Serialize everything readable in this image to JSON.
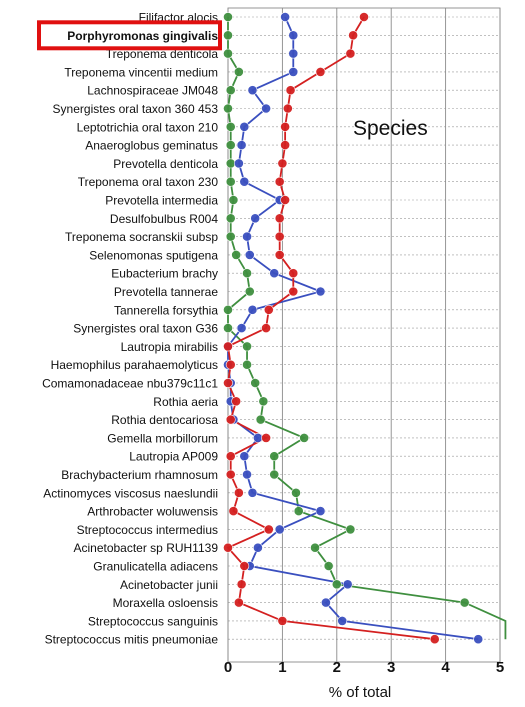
{
  "chart_data": {
    "type": "line",
    "orientation": "horizontal",
    "title": "",
    "xlabel": "% of total",
    "ylabel": "",
    "xlim": [
      0,
      5
    ],
    "x_ticks": [
      "0",
      "1",
      "2",
      "3",
      "4",
      "5"
    ],
    "grid": true,
    "annotation": "Species",
    "highlighted_category": "Porphyromonas gingivalis",
    "highlight_color": "#e01010",
    "categories": [
      "Filifactor alocis",
      "Porphyromonas gingivalis",
      "Treponema denticola",
      "Treponema vincentii medium",
      "Lachnospiraceae JM048",
      "Synergistes oral taxon 360 453",
      "Leptotrichia oral taxon 210",
      "Anaeroglobus geminatus",
      "Prevotella denticola",
      "Treponema oral taxon 230",
      "Prevotella intermedia",
      "Desulfobulbus R004",
      "Treponema socranskii subsp",
      "Selenomonas sputigena",
      "Eubacterium brachy",
      "Prevotella tannerae",
      "Tannerella forsythia",
      "Synergistes oral taxon G36",
      "Lautropia mirabilis",
      "Haemophilus parahaemolyticus",
      "Comamonadaceae nbu379c11c1",
      "Rothia aeria",
      "Rothia dentocariosa",
      "Gemella morbillorum",
      "Lautropia AP009",
      "Brachybacterium rhamnosum",
      "Actinomyces viscosus naeslundii",
      "Arthrobacter woluwensis",
      "Streptococcus intermedius",
      "Acinetobacter sp RUH1139",
      "Granulicatella adiacens",
      "Acinetobacter junii",
      "Moraxella osloensis",
      "Streptococcus sanguinis",
      "Streptococcus mitis pneumoniae"
    ],
    "series": [
      {
        "color": "#d42020",
        "values": [
          2.5,
          2.3,
          2.25,
          1.7,
          1.15,
          1.1,
          1.05,
          1.05,
          1.0,
          0.95,
          1.05,
          0.95,
          0.95,
          0.95,
          1.2,
          1.2,
          0.75,
          0.7,
          0.0,
          0.05,
          0.0,
          0.15,
          0.05,
          0.7,
          0.05,
          0.05,
          0.2,
          0.1,
          0.75,
          0.0,
          0.3,
          0.25,
          0.2,
          1.0,
          3.8
        ]
      },
      {
        "color": "#3a4fbf",
        "values": [
          1.05,
          1.2,
          1.2,
          1.2,
          0.45,
          0.7,
          0.3,
          0.25,
          0.2,
          0.3,
          0.95,
          0.5,
          0.35,
          0.4,
          0.85,
          1.7,
          0.45,
          0.25,
          0.0,
          0.0,
          0.05,
          0.05,
          0.1,
          0.55,
          0.3,
          0.35,
          0.45,
          1.7,
          0.95,
          0.55,
          0.4,
          2.2,
          1.8,
          2.1,
          4.6
        ]
      },
      {
        "color": "#3f8f3f",
        "values": [
          0.0,
          0.0,
          0.0,
          0.2,
          0.05,
          0.0,
          0.05,
          0.05,
          0.05,
          0.05,
          0.1,
          0.05,
          0.05,
          0.15,
          0.35,
          0.4,
          0.0,
          0.0,
          0.35,
          0.35,
          0.5,
          0.65,
          0.6,
          1.4,
          0.85,
          0.85,
          1.25,
          1.3,
          2.25,
          1.6,
          1.85,
          2.0,
          4.35,
          5.1,
          5.1
        ]
      }
    ]
  }
}
